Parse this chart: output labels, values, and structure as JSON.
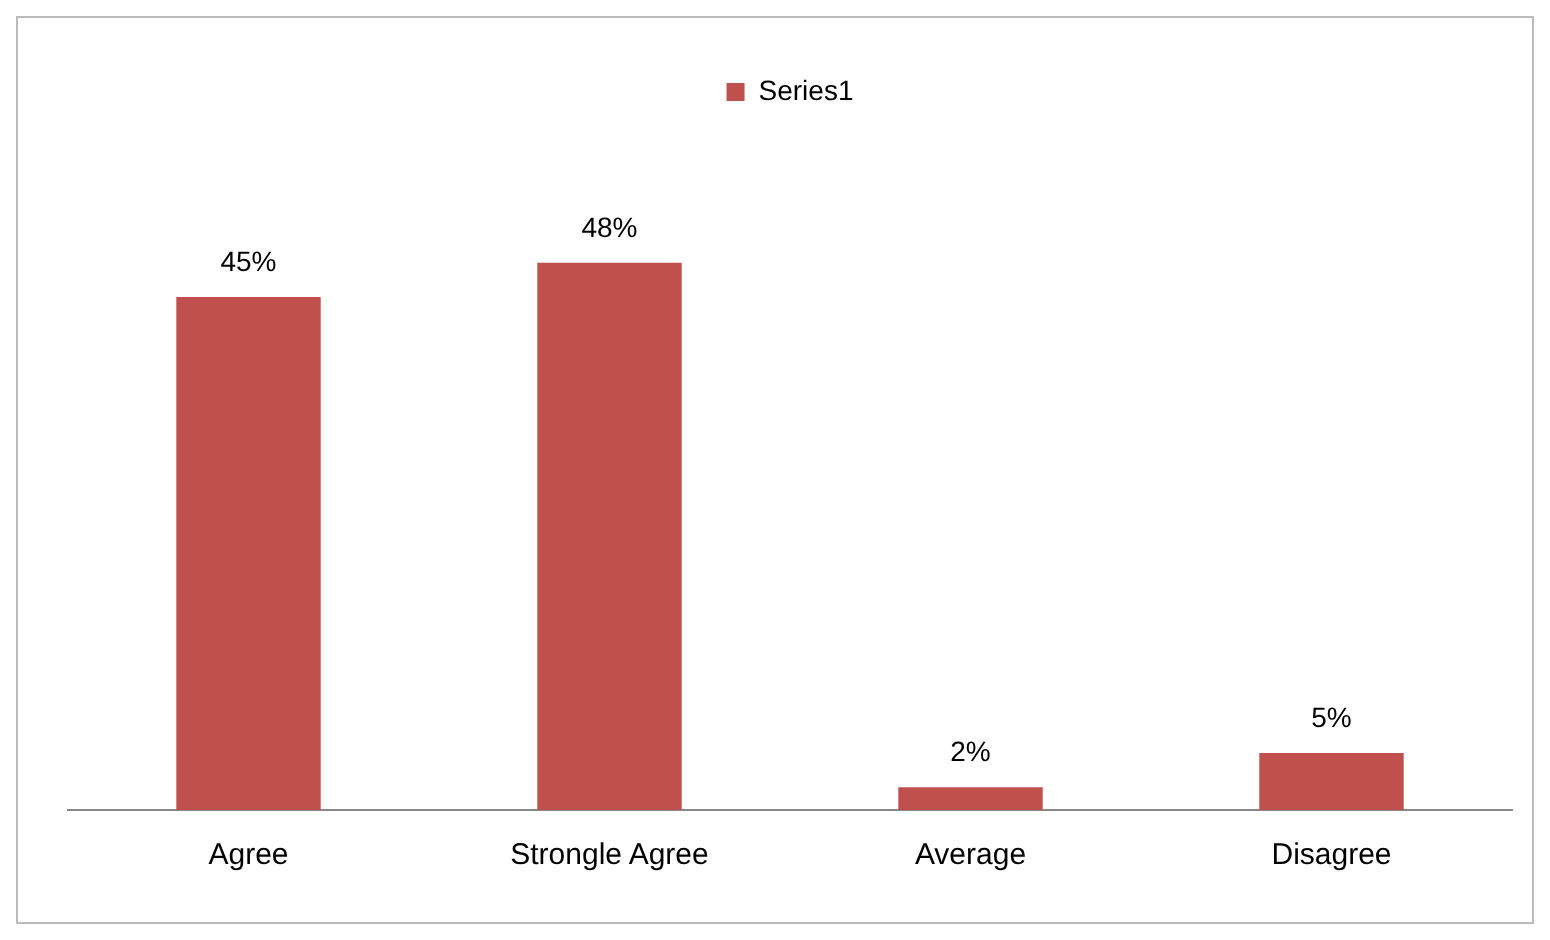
{
  "chart_data": {
    "type": "bar",
    "categories": [
      "Agree",
      "Strongle Agree",
      "Average",
      "Disagree"
    ],
    "series": [
      {
        "name": "Series1",
        "color": "#c0504d",
        "values": [
          45,
          48,
          2,
          5
        ],
        "value_labels": [
          "45%",
          "48%",
          "2%",
          "5%"
        ]
      }
    ],
    "legend": "top",
    "grid": false
  }
}
